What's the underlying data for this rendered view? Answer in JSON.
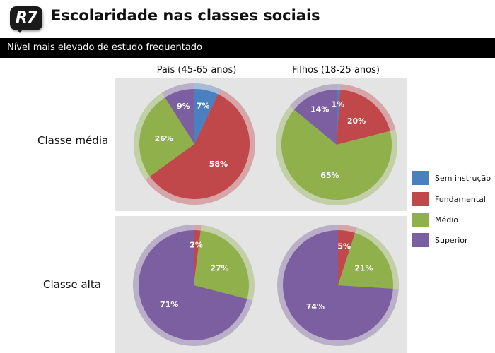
{
  "header": {
    "logo": "R7",
    "title": "Escolaridade nas classes sociais",
    "subtitle": "Nível mais elevado de estudo frequentado"
  },
  "columns": [
    "Pais (45-65 anos)",
    "Filhos (18-25 anos)"
  ],
  "rows": [
    "Classe média",
    "Classe alta"
  ],
  "legend": [
    {
      "label": "Sem instrução",
      "color": "#4a7fc0"
    },
    {
      "label": "Fundamental",
      "color": "#c0474a"
    },
    {
      "label": "Médio",
      "color": "#8fb04a"
    },
    {
      "label": "Superior",
      "color": "#7b5fa0"
    }
  ],
  "chart_data": [
    {
      "type": "pie",
      "row": "Classe média",
      "column": "Pais (45-65 anos)",
      "categories": [
        "Sem instrução",
        "Fundamental",
        "Médio",
        "Superior"
      ],
      "values": [
        7,
        58,
        26,
        9
      ],
      "labels": [
        "7%",
        "58%",
        "26%",
        "9%"
      ]
    },
    {
      "type": "pie",
      "row": "Classe média",
      "column": "Filhos (18-25 anos)",
      "categories": [
        "Sem instrução",
        "Fundamental",
        "Médio",
        "Superior"
      ],
      "values": [
        1,
        20,
        65,
        14
      ],
      "labels": [
        "1%",
        "20%",
        "65%",
        "14%"
      ]
    },
    {
      "type": "pie",
      "row": "Classe alta",
      "column": "Pais (45-65 anos)",
      "categories": [
        "Fundamental",
        "Médio",
        "Superior"
      ],
      "values": [
        2,
        27,
        71
      ],
      "labels": [
        "2%",
        "27%",
        "71%"
      ]
    },
    {
      "type": "pie",
      "row": "Classe alta",
      "column": "Filhos (18-25 anos)",
      "categories": [
        "Fundamental",
        "Médio",
        "Superior"
      ],
      "values": [
        5,
        21,
        74
      ],
      "labels": [
        "5%",
        "21%",
        "74%"
      ]
    }
  ]
}
